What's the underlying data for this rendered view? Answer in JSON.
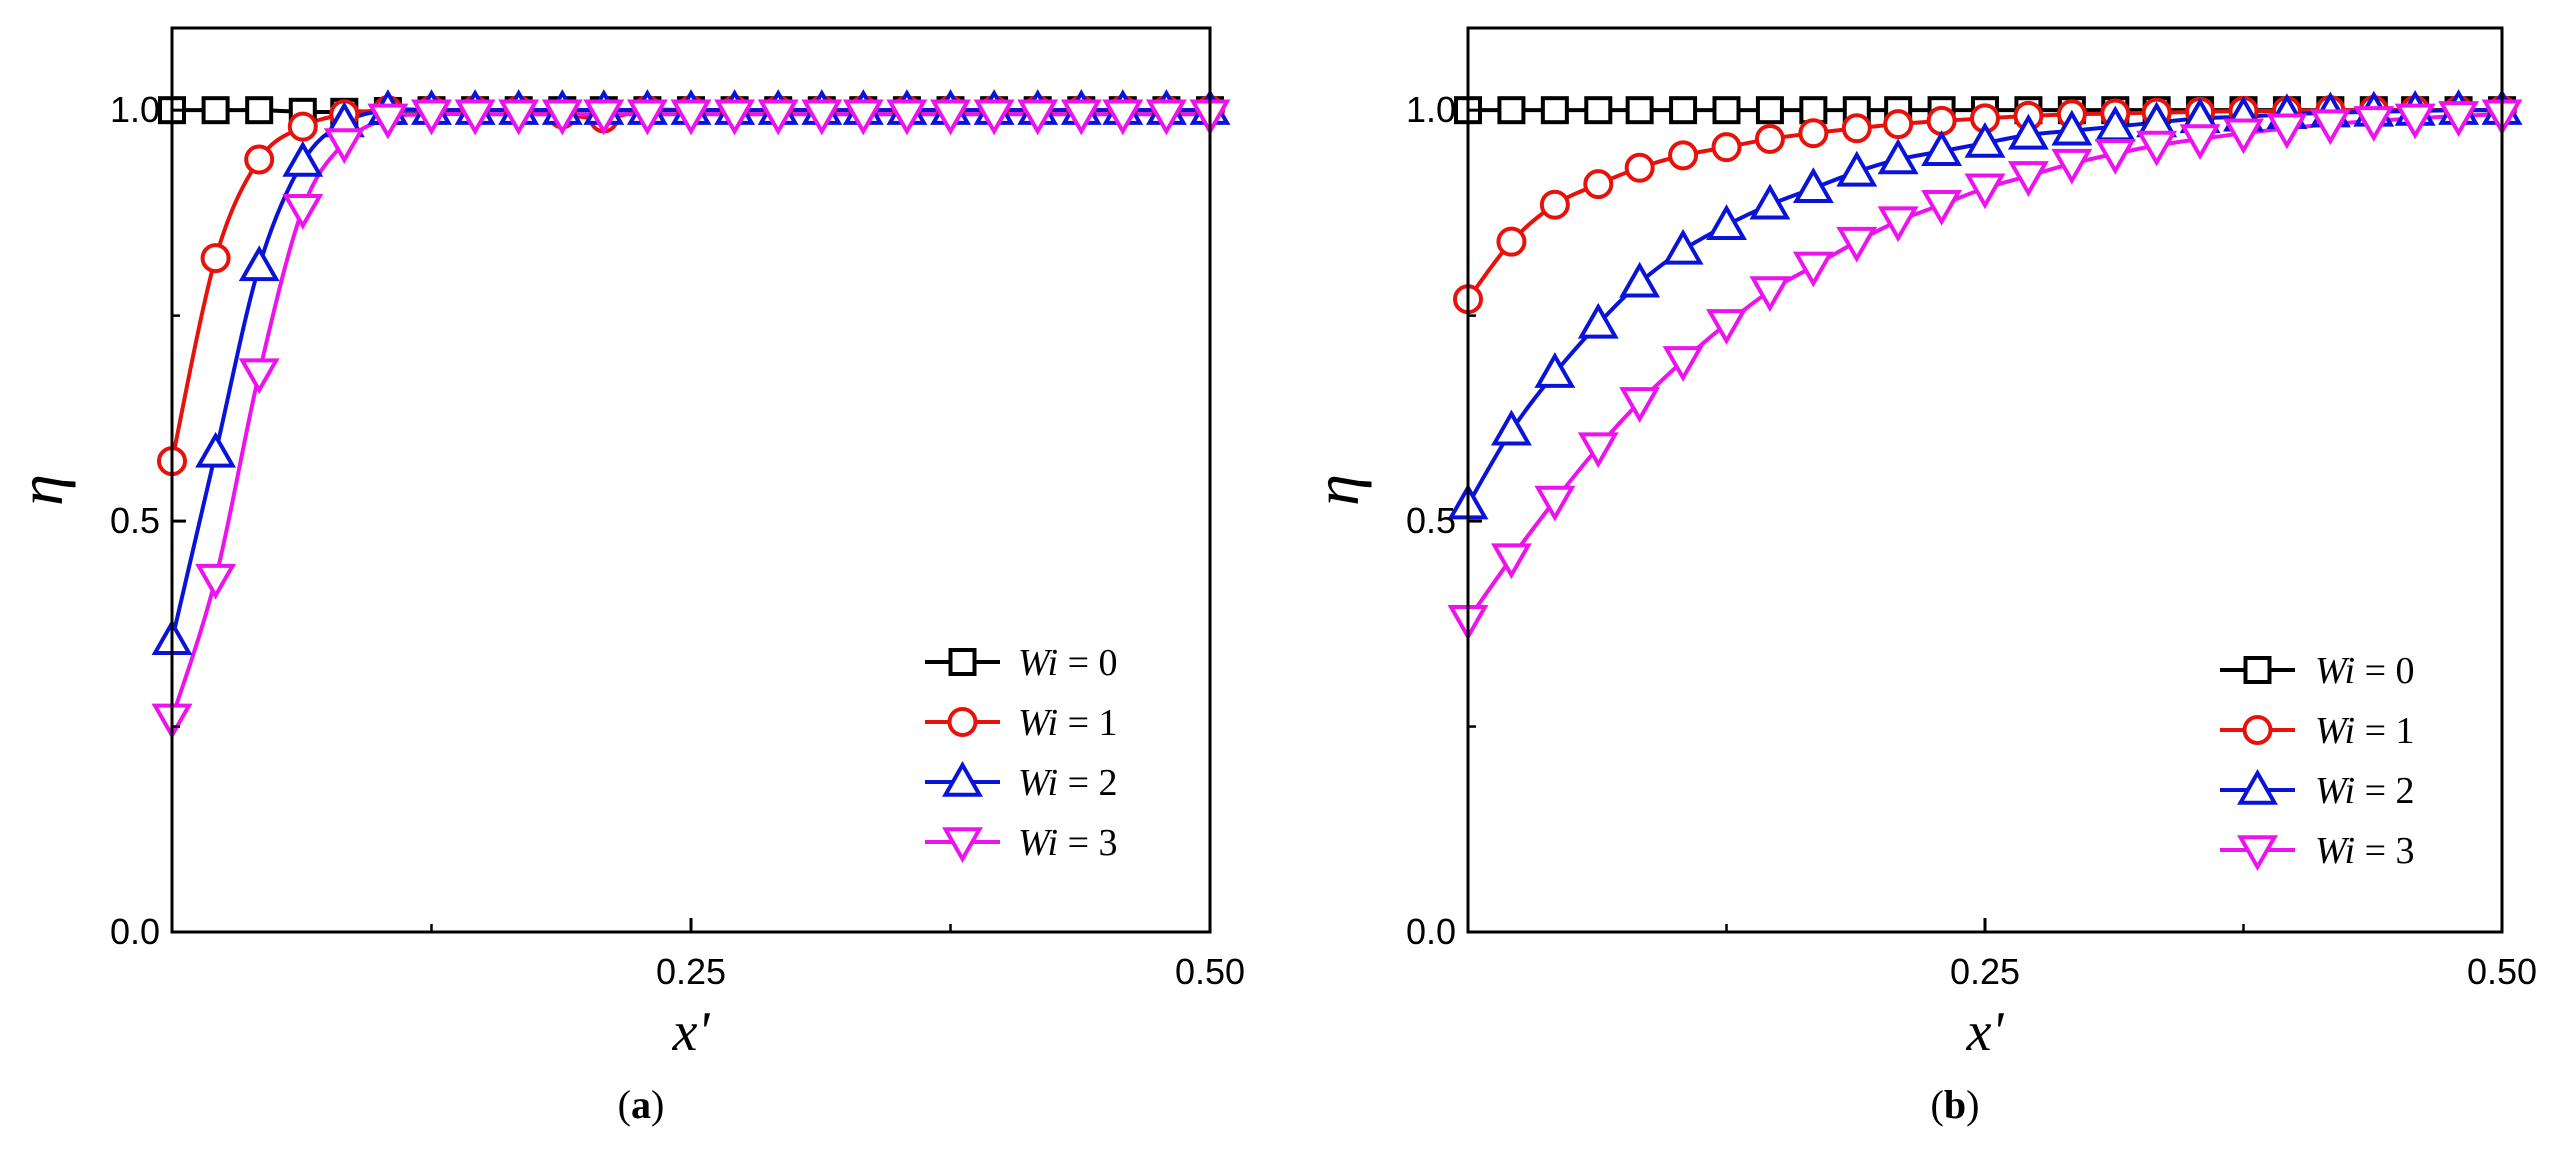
{
  "chart_data": [
    {
      "type": "line",
      "panel": "(a)",
      "caption": {
        "open": "(",
        "letter": "a",
        "close": ")"
      },
      "xlabel": "x'",
      "ylabel": "η",
      "xlim": [
        0,
        0.5
      ],
      "ylim": [
        0,
        1.1
      ],
      "x_ticks": [
        0.25,
        0.5
      ],
      "x_tick_labels": [
        "0.25",
        "0.50"
      ],
      "y_ticks": [
        0,
        0.5,
        1.0
      ],
      "y_tick_labels": [
        "0.0",
        "0.5",
        "1.0"
      ],
      "grid": false,
      "legend": "bottom-right",
      "series": [
        {
          "name": "Wi = 0",
          "name_var": "Wi",
          "name_rest": " = 0",
          "color": "#000000",
          "marker": "square",
          "points": [
            [
              0,
              1
            ],
            [
              0.021,
              1
            ],
            [
              0.042,
              1
            ],
            [
              0.063,
              0.998
            ],
            [
              0.083,
              0.998
            ],
            [
              0.104,
              0.999
            ],
            [
              0.125,
              1
            ],
            [
              0.146,
              1
            ],
            [
              0.167,
              1
            ],
            [
              0.188,
              1
            ],
            [
              0.208,
              1
            ],
            [
              0.229,
              1
            ],
            [
              0.25,
              1
            ],
            [
              0.271,
              1
            ],
            [
              0.292,
              1
            ],
            [
              0.313,
              1
            ],
            [
              0.333,
              1
            ],
            [
              0.354,
              1
            ],
            [
              0.375,
              1
            ],
            [
              0.396,
              1
            ],
            [
              0.417,
              1
            ],
            [
              0.438,
              1
            ],
            [
              0.458,
              1
            ],
            [
              0.479,
              1
            ],
            [
              0.5,
              1
            ]
          ]
        },
        {
          "name": "Wi = 1",
          "name_var": "Wi",
          "name_rest": " = 1",
          "color": "#e8120c",
          "marker": "circle",
          "points": [
            [
              0,
              0.573
            ],
            [
              0.021,
              0.82
            ],
            [
              0.042,
              0.94
            ],
            [
              0.063,
              0.98
            ],
            [
              0.083,
              0.995
            ],
            [
              0.104,
              1
            ],
            [
              0.125,
              1
            ],
            [
              0.146,
              1
            ],
            [
              0.167,
              1
            ],
            [
              0.188,
              0.995
            ],
            [
              0.208,
              0.99
            ],
            [
              0.229,
              1
            ],
            [
              0.25,
              1
            ],
            [
              0.271,
              1
            ],
            [
              0.292,
              1
            ],
            [
              0.313,
              1
            ],
            [
              0.333,
              1
            ],
            [
              0.354,
              1
            ],
            [
              0.375,
              1
            ],
            [
              0.396,
              1
            ],
            [
              0.417,
              1
            ],
            [
              0.438,
              1
            ],
            [
              0.458,
              1
            ],
            [
              0.479,
              1
            ],
            [
              0.5,
              1
            ]
          ]
        },
        {
          "name": "Wi = 2",
          "name_var": "Wi",
          "name_rest": " = 2",
          "color": "#0a14d8",
          "marker": "triangle-up",
          "points": [
            [
              0,
              0.355
            ],
            [
              0.021,
              0.583
            ],
            [
              0.042,
              0.81
            ],
            [
              0.063,
              0.937
            ],
            [
              0.083,
              0.985
            ],
            [
              0.104,
              1
            ],
            [
              0.125,
              1
            ],
            [
              0.146,
              1
            ],
            [
              0.167,
              1
            ],
            [
              0.188,
              1
            ],
            [
              0.208,
              1
            ],
            [
              0.229,
              1
            ],
            [
              0.25,
              1
            ],
            [
              0.271,
              1
            ],
            [
              0.292,
              1
            ],
            [
              0.313,
              1
            ],
            [
              0.333,
              1
            ],
            [
              0.354,
              1
            ],
            [
              0.375,
              1
            ],
            [
              0.396,
              1
            ],
            [
              0.417,
              1
            ],
            [
              0.438,
              1
            ],
            [
              0.458,
              1
            ],
            [
              0.479,
              1
            ],
            [
              0.5,
              1
            ]
          ]
        },
        {
          "name": "Wi = 3",
          "name_var": "Wi",
          "name_rest": " = 3",
          "color": "#ee12ee",
          "marker": "triangle-down",
          "points": [
            [
              0,
              0.26
            ],
            [
              0.021,
              0.43
            ],
            [
              0.042,
              0.68
            ],
            [
              0.063,
              0.88
            ],
            [
              0.083,
              0.96
            ],
            [
              0.104,
              0.99
            ],
            [
              0.125,
              0.995
            ],
            [
              0.146,
              0.995
            ],
            [
              0.167,
              0.995
            ],
            [
              0.188,
              0.995
            ],
            [
              0.208,
              0.995
            ],
            [
              0.229,
              0.995
            ],
            [
              0.25,
              0.995
            ],
            [
              0.271,
              0.995
            ],
            [
              0.292,
              0.995
            ],
            [
              0.313,
              0.995
            ],
            [
              0.333,
              0.995
            ],
            [
              0.354,
              0.995
            ],
            [
              0.375,
              0.995
            ],
            [
              0.396,
              0.995
            ],
            [
              0.417,
              0.995
            ],
            [
              0.438,
              0.995
            ],
            [
              0.458,
              0.995
            ],
            [
              0.479,
              0.995
            ],
            [
              0.5,
              0.995
            ]
          ]
        }
      ]
    },
    {
      "type": "line",
      "panel": "(b)",
      "caption": {
        "open": "(",
        "letter": "b",
        "close": ")"
      },
      "xlabel": "x'",
      "ylabel": "η",
      "xlim": [
        0,
        0.5
      ],
      "ylim": [
        0,
        1.1
      ],
      "x_ticks": [
        0.25,
        0.5
      ],
      "x_tick_labels": [
        "0.25",
        "0.50"
      ],
      "y_ticks": [
        0,
        0.5,
        1.0
      ],
      "y_tick_labels": [
        "0.0",
        "0.5",
        "1.0"
      ],
      "grid": false,
      "legend": "bottom-right",
      "series": [
        {
          "name": "Wi = 0",
          "name_var": "Wi",
          "name_rest": " = 0",
          "color": "#000000",
          "marker": "square",
          "points": [
            [
              0,
              1
            ],
            [
              0.021,
              1
            ],
            [
              0.042,
              1
            ],
            [
              0.063,
              1
            ],
            [
              0.083,
              1
            ],
            [
              0.104,
              1
            ],
            [
              0.125,
              1
            ],
            [
              0.146,
              1
            ],
            [
              0.167,
              1
            ],
            [
              0.188,
              1
            ],
            [
              0.208,
              1
            ],
            [
              0.229,
              1
            ],
            [
              0.25,
              1
            ],
            [
              0.271,
              1
            ],
            [
              0.292,
              1
            ],
            [
              0.313,
              1
            ],
            [
              0.333,
              1
            ],
            [
              0.354,
              1
            ],
            [
              0.375,
              1
            ],
            [
              0.396,
              1
            ],
            [
              0.417,
              1
            ],
            [
              0.438,
              1
            ],
            [
              0.458,
              1
            ],
            [
              0.479,
              1
            ],
            [
              0.5,
              1
            ]
          ]
        },
        {
          "name": "Wi = 1",
          "name_var": "Wi",
          "name_rest": " = 1",
          "color": "#e8120c",
          "marker": "circle",
          "points": [
            [
              0,
              0.77
            ],
            [
              0.021,
              0.84
            ],
            [
              0.042,
              0.885
            ],
            [
              0.063,
              0.91
            ],
            [
              0.083,
              0.93
            ],
            [
              0.104,
              0.945
            ],
            [
              0.125,
              0.955
            ],
            [
              0.146,
              0.965
            ],
            [
              0.167,
              0.972
            ],
            [
              0.188,
              0.978
            ],
            [
              0.208,
              0.983
            ],
            [
              0.229,
              0.987
            ],
            [
              0.25,
              0.99
            ],
            [
              0.271,
              0.993
            ],
            [
              0.292,
              0.995
            ],
            [
              0.313,
              0.996
            ],
            [
              0.333,
              0.997
            ],
            [
              0.354,
              0.998
            ],
            [
              0.375,
              0.999
            ],
            [
              0.396,
              0.999
            ],
            [
              0.417,
              1
            ],
            [
              0.438,
              1
            ],
            [
              0.458,
              1
            ],
            [
              0.479,
              1
            ],
            [
              0.5,
              1
            ]
          ]
        },
        {
          "name": "Wi = 2",
          "name_var": "Wi",
          "name_rest": " = 2",
          "color": "#0a14d8",
          "marker": "triangle-up",
          "points": [
            [
              0,
              0.52
            ],
            [
              0.021,
              0.61
            ],
            [
              0.042,
              0.68
            ],
            [
              0.063,
              0.74
            ],
            [
              0.083,
              0.79
            ],
            [
              0.104,
              0.83
            ],
            [
              0.125,
              0.86
            ],
            [
              0.146,
              0.885
            ],
            [
              0.167,
              0.905
            ],
            [
              0.188,
              0.925
            ],
            [
              0.208,
              0.94
            ],
            [
              0.229,
              0.95
            ],
            [
              0.25,
              0.96
            ],
            [
              0.271,
              0.97
            ],
            [
              0.292,
              0.975
            ],
            [
              0.313,
              0.98
            ],
            [
              0.333,
              0.985
            ],
            [
              0.354,
              0.99
            ],
            [
              0.375,
              0.992
            ],
            [
              0.396,
              0.995
            ],
            [
              0.417,
              0.997
            ],
            [
              0.438,
              0.998
            ],
            [
              0.458,
              0.999
            ],
            [
              0.479,
              1
            ],
            [
              0.5,
              1
            ]
          ]
        },
        {
          "name": "Wi = 3",
          "name_var": "Wi",
          "name_rest": " = 3",
          "color": "#ee12ee",
          "marker": "triangle-down",
          "points": [
            [
              0,
              0.38
            ],
            [
              0.021,
              0.455
            ],
            [
              0.042,
              0.525
            ],
            [
              0.063,
              0.59
            ],
            [
              0.083,
              0.645
            ],
            [
              0.104,
              0.695
            ],
            [
              0.125,
              0.74
            ],
            [
              0.146,
              0.78
            ],
            [
              0.167,
              0.81
            ],
            [
              0.188,
              0.84
            ],
            [
              0.208,
              0.865
            ],
            [
              0.229,
              0.885
            ],
            [
              0.25,
              0.905
            ],
            [
              0.271,
              0.92
            ],
            [
              0.292,
              0.935
            ],
            [
              0.313,
              0.947
            ],
            [
              0.333,
              0.957
            ],
            [
              0.354,
              0.965
            ],
            [
              0.375,
              0.972
            ],
            [
              0.396,
              0.978
            ],
            [
              0.417,
              0.983
            ],
            [
              0.438,
              0.987
            ],
            [
              0.458,
              0.99
            ],
            [
              0.479,
              0.993
            ],
            [
              0.5,
              0.995
            ]
          ]
        }
      ]
    }
  ]
}
